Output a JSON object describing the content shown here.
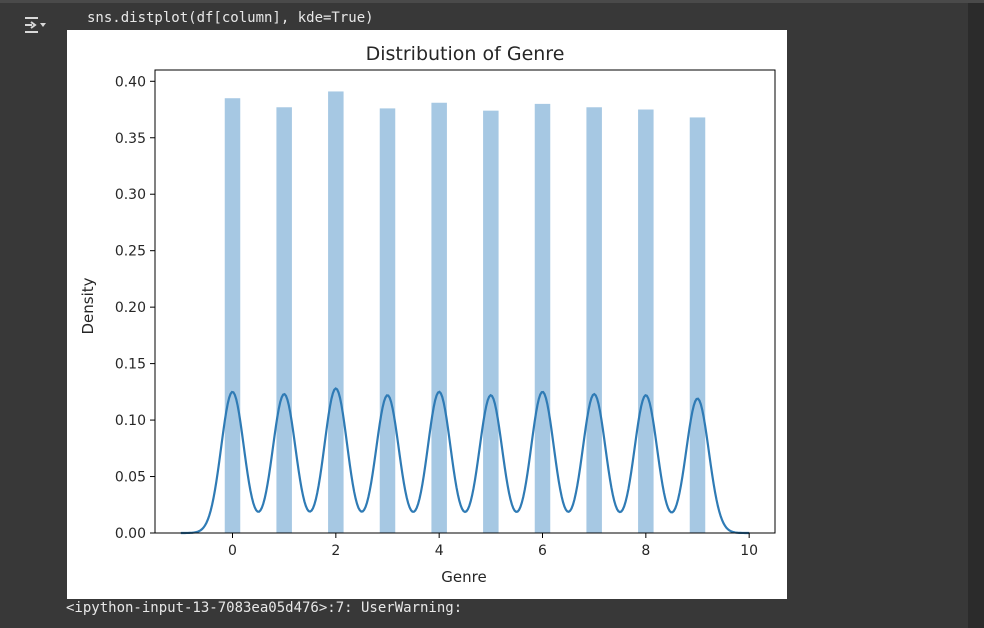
{
  "cell": {
    "code": "sns.distplot(df[column], kde=True)",
    "warning": "<ipython-input-13-7083ea05d476>:7: UserWarning:",
    "toggle_icon": "output-toggle-icon"
  },
  "chart_data": {
    "type": "bar",
    "title": "Distribution of Genre",
    "xlabel": "Genre",
    "ylabel": "Density",
    "xlim": [
      -1.5,
      10.5
    ],
    "ylim": [
      0,
      0.41
    ],
    "xticks": [
      0,
      2,
      4,
      6,
      8,
      10
    ],
    "yticks": [
      0.0,
      0.05,
      0.1,
      0.15,
      0.2,
      0.25,
      0.3,
      0.35,
      0.4
    ],
    "ytick_labels": [
      "0.00",
      "0.05",
      "0.10",
      "0.15",
      "0.20",
      "0.25",
      "0.30",
      "0.35",
      "0.40"
    ],
    "bar_color": "#a6c8e3",
    "kde_color": "#2f7bb5",
    "grid": false,
    "histogram": {
      "bin_width": 0.3,
      "centers": [
        0,
        1,
        2,
        3,
        4,
        5,
        6,
        7,
        8,
        9
      ],
      "values": [
        0.385,
        0.377,
        0.391,
        0.376,
        0.381,
        0.374,
        0.38,
        0.377,
        0.375,
        0.368
      ]
    },
    "kde": {
      "peaks_x": [
        0,
        1,
        2,
        3,
        4,
        5,
        6,
        7,
        8,
        9
      ],
      "peak_values": [
        0.125,
        0.123,
        0.128,
        0.122,
        0.125,
        0.122,
        0.125,
        0.123,
        0.122,
        0.119
      ],
      "range": [
        -1,
        10
      ]
    }
  }
}
